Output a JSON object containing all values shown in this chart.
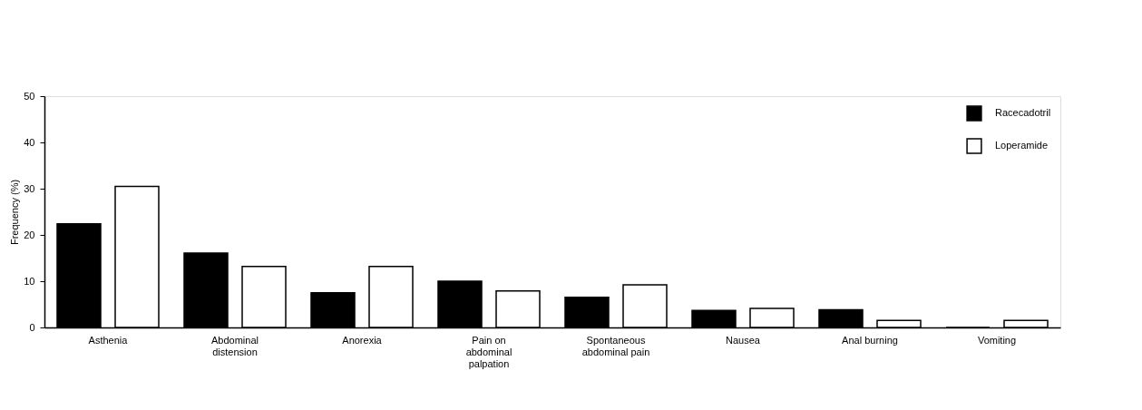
{
  "chart_data": {
    "type": "bar",
    "ylabel": "Frequency (%)",
    "categories": [
      "Asthenia",
      "Abdominal distension",
      "Anorexia",
      "Pain on abdominal palpation",
      "Spontaneous abdominal pain",
      "Nausea",
      "Anal burning",
      "Vomiting"
    ],
    "series": [
      {
        "name": "Racecadotril",
        "color": "#000000",
        "values": [
          22.4,
          16.1,
          7.5,
          10.0,
          6.5,
          3.7,
          3.8,
          0
        ]
      },
      {
        "name": "Loperamide",
        "color": "#ffffff",
        "values": [
          30.5,
          13.2,
          13.2,
          7.9,
          9.2,
          4.1,
          1.5,
          1.5
        ]
      }
    ],
    "ylim": [
      0,
      50
    ],
    "yticks": [
      0,
      10,
      20,
      30,
      40,
      50
    ],
    "grid": false,
    "legend": "top right"
  }
}
